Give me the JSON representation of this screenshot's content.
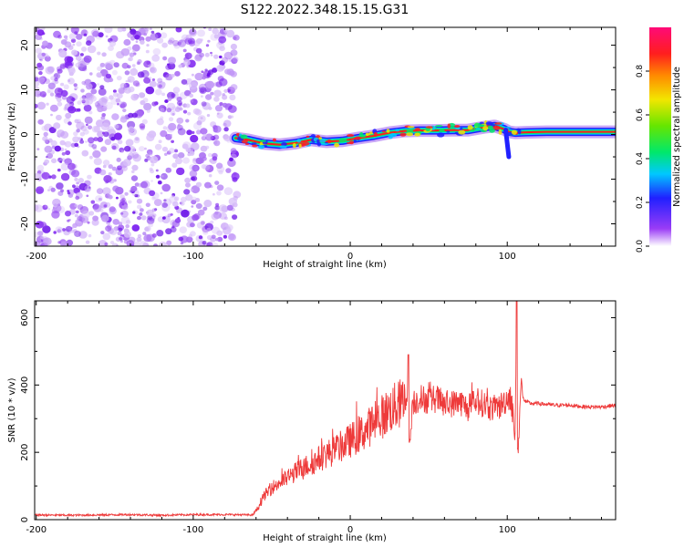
{
  "title": "S122.2022.348.15.15.G31",
  "chart_data": [
    {
      "type": "heatmap",
      "xlabel": "Height of straight line (km)",
      "ylabel": "Frequency (Hz)",
      "xlim": [
        -201,
        169
      ],
      "ylim": [
        -25,
        24
      ],
      "x_ticks": [
        -200,
        -100,
        0,
        100
      ],
      "y_ticks": [
        -20,
        -10,
        0,
        10,
        20
      ],
      "colorbar": {
        "label": "Normalized spectral amplitude",
        "range": [
          0.0,
          1.0
        ],
        "ticks": [
          "0.0",
          "0.2",
          "0.4",
          "0.6",
          "0.8"
        ],
        "colormap": [
          "#ffffff",
          "#9a3cf6",
          "#2020ff",
          "#00c8ff",
          "#00e86a",
          "#66e600",
          "#f2e600",
          "#ff8a00",
          "#ff1e1e",
          "#ff0a78"
        ]
      },
      "noise_region_x": [
        -201,
        -72
      ],
      "signal_track": {
        "x": [
          -73,
          -65,
          -55,
          -45,
          -35,
          -25,
          -15,
          -5,
          5,
          15,
          25,
          35,
          45,
          55,
          65,
          75,
          85,
          92,
          98,
          101,
          105,
          112,
          125,
          140,
          155,
          169
        ],
        "freq_hz": [
          -0.8,
          -1.2,
          -2.0,
          -2.3,
          -1.9,
          -1.2,
          -1.6,
          -1.4,
          -0.8,
          -0.3,
          0.4,
          0.8,
          0.9,
          0.9,
          1.0,
          1.0,
          1.6,
          1.9,
          1.2,
          0.6,
          0.4,
          0.5,
          0.6,
          0.6,
          0.6,
          0.6
        ]
      }
    },
    {
      "type": "line",
      "xlabel": "Height of straight line (km)",
      "ylabel": "SNR (10 * v/v)",
      "xlim": [
        -201,
        169
      ],
      "ylim": [
        0,
        650
      ],
      "x_ticks": [
        -200,
        -100,
        0,
        100
      ],
      "y_ticks": [
        0,
        200,
        400,
        600
      ],
      "color": "#ee3a3a",
      "series": [
        {
          "x": [
            -201,
            -180,
            -160,
            -140,
            -120,
            -100,
            -80,
            -62,
            -58,
            -55,
            -50,
            -45,
            -40,
            -35,
            -30,
            -25,
            -20,
            -15,
            -10,
            -5,
            0,
            5,
            10,
            15,
            20,
            25,
            30,
            34,
            36,
            37,
            38,
            40,
            45,
            50,
            55,
            60,
            65,
            70,
            75,
            80,
            85,
            90,
            95,
            98,
            100,
            102,
            104,
            105,
            106,
            107,
            108,
            109,
            110,
            112,
            115,
            120,
            130,
            140,
            150,
            160,
            169
          ],
          "y": [
            14,
            13,
            14,
            15,
            13,
            15,
            15,
            14,
            40,
            70,
            95,
            110,
            125,
            140,
            155,
            165,
            180,
            195,
            205,
            220,
            235,
            250,
            265,
            290,
            305,
            325,
            340,
            350,
            360,
            480,
            230,
            350,
            360,
            355,
            360,
            340,
            345,
            350,
            330,
            350,
            345,
            330,
            335,
            350,
            360,
            370,
            300,
            240,
            650,
            215,
            330,
            420,
            360,
            350,
            345,
            345,
            340,
            340,
            335,
            335,
            340
          ]
        }
      ],
      "spikes": [
        {
          "x": 37,
          "low": 230,
          "high": 490
        },
        {
          "x": 106,
          "low": 210,
          "high": 650
        }
      ]
    }
  ]
}
